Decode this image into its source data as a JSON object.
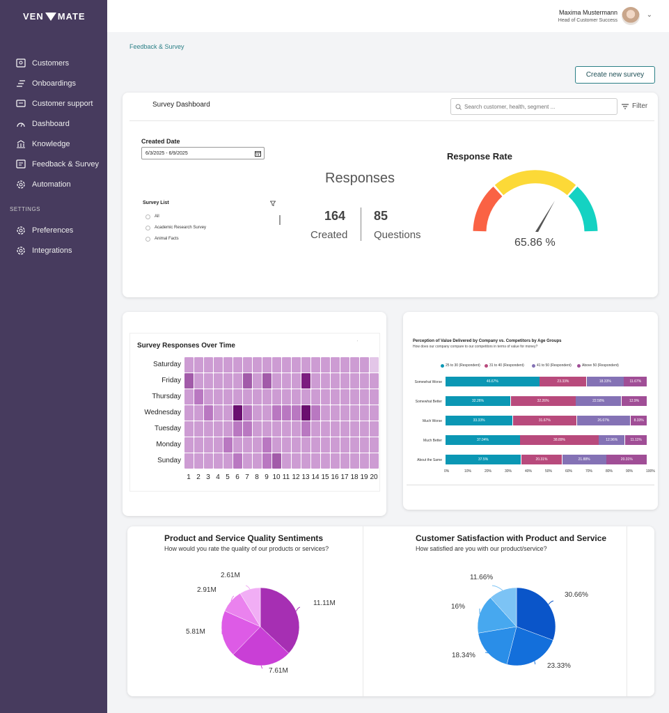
{
  "brand": {
    "left": "VEN",
    "right": "MATE"
  },
  "sidebar": {
    "items": [
      {
        "label": "Customers",
        "icon": "customers-icon"
      },
      {
        "label": "Onboardings",
        "icon": "onboardings-icon"
      },
      {
        "label": "Customer support",
        "icon": "support-icon"
      },
      {
        "label": "Dashboard",
        "icon": "dashboard-icon"
      },
      {
        "label": "Knowledge",
        "icon": "knowledge-icon"
      },
      {
        "label": "Feedback & Survey",
        "icon": "feedback-icon"
      },
      {
        "label": "Automation",
        "icon": "automation-icon"
      }
    ],
    "settings_label": "SETTINGS",
    "settings_items": [
      {
        "label": "Preferences",
        "icon": "gear-icon"
      },
      {
        "label": "Integrations",
        "icon": "gear-icon"
      }
    ]
  },
  "user": {
    "name": "Maxima Mustermann",
    "role": "Head of Customer Success"
  },
  "breadcrumb": "Feedback & Survey",
  "create_button": "Create new survey",
  "dashboard": {
    "title": "Survey Dashboard",
    "search_placeholder": "Search customer, health, segment ...",
    "filter_label": "Filter",
    "created_date_label": "Created Date",
    "date_range": "6/3/2025 - 6/9/2025",
    "survey_list_label": "Survey List",
    "survey_list": [
      "All",
      "Academic Research Survey",
      "Animal Facts"
    ],
    "responses_title": "Responses",
    "created_value": "164",
    "created_label": "Created",
    "questions_value": "85",
    "questions_label": "Questions",
    "response_rate_title": "Response Rate",
    "response_rate_value": "65.86 %",
    "response_rate_pct": 65.86
  },
  "heatmap": {
    "title": "Survey Responses Over Time",
    "days": [
      "Saturday",
      "Friday",
      "Thursday",
      "Wednesday",
      "Tuesday",
      "Monday",
      "Sunday"
    ],
    "columns": [
      "1",
      "2",
      "3",
      "4",
      "5",
      "6",
      "7",
      "8",
      "9",
      "10",
      "11",
      "12",
      "13",
      "14",
      "15",
      "16",
      "17",
      "18",
      "19",
      "20"
    ],
    "levels": [
      [
        1,
        1,
        1,
        1,
        1,
        1,
        1,
        1,
        1,
        1,
        1,
        1,
        1,
        1,
        1,
        1,
        1,
        1,
        1,
        0
      ],
      [
        3,
        1,
        1,
        1,
        1,
        1,
        3,
        1,
        3,
        1,
        1,
        1,
        4,
        1,
        1,
        1,
        1,
        1,
        1,
        1
      ],
      [
        1,
        2,
        1,
        1,
        1,
        1,
        1,
        1,
        1,
        1,
        1,
        1,
        1,
        1,
        1,
        1,
        1,
        1,
        1,
        1
      ],
      [
        1,
        1,
        2,
        1,
        1,
        5,
        2,
        1,
        1,
        2,
        2,
        2,
        5,
        2,
        1,
        1,
        1,
        1,
        1,
        1
      ],
      [
        1,
        1,
        1,
        1,
        1,
        2,
        2,
        1,
        1,
        1,
        1,
        1,
        2,
        1,
        1,
        1,
        1,
        1,
        1,
        1
      ],
      [
        1,
        1,
        1,
        1,
        2,
        1,
        1,
        1,
        2,
        1,
        1,
        1,
        1,
        1,
        1,
        1,
        1,
        1,
        1,
        1
      ],
      [
        1,
        1,
        1,
        1,
        1,
        2,
        1,
        1,
        2,
        3,
        1,
        1,
        1,
        1,
        1,
        1,
        1,
        1,
        1,
        1
      ]
    ]
  },
  "perception": {
    "title": "Perception of Value Delivered by Company vs. Competitors by Age Groups",
    "subtitle": "How does our company compare to our competitors in terms of value for money?",
    "legend": [
      {
        "label": "25 to 30 (Respondent)",
        "color": "#0b97b4"
      },
      {
        "label": "31 to 40 (Respondent)",
        "color": "#b84a7c"
      },
      {
        "label": "41 to 50 (Respondent)",
        "color": "#8472b5"
      },
      {
        "label": "Above 50 (Respondent)",
        "color": "#a04e96"
      }
    ],
    "rows": [
      {
        "label": "Somewhat Worse",
        "values": [
          46.67,
          23.33,
          18.33,
          11.67
        ],
        "text": [
          "46.67%",
          "23.33%",
          "18.33%",
          "11.67%"
        ]
      },
      {
        "label": "Somewhat Better",
        "values": [
          32.26,
          32.26,
          22.58,
          12.9
        ],
        "text": [
          "32.26%",
          "32.26%",
          "22.58%",
          "12.9%"
        ]
      },
      {
        "label": "Much Worse",
        "values": [
          33.33,
          31.67,
          26.67,
          8.33
        ],
        "text": [
          "33.33%",
          "31.67%",
          "26.67%",
          "8.33%"
        ]
      },
      {
        "label": "Much Better",
        "values": [
          37.04,
          38.89,
          12.96,
          11.11
        ],
        "text": [
          "37.04%",
          "38.89%",
          "12.96%",
          "11.11%"
        ]
      },
      {
        "label": "About the Same",
        "values": [
          37.5,
          20.31,
          21.88,
          20.31
        ],
        "text": [
          "37.5%",
          "20.31%",
          "21.88%",
          "20.31%"
        ]
      }
    ],
    "x_ticks": [
      "0%",
      "10%",
      "20%",
      "30%",
      "40%",
      "50%",
      "60%",
      "70%",
      "80%",
      "90%",
      "100%"
    ]
  },
  "chart_data": [
    {
      "type": "pie",
      "title": "Product and Service Quality Sentiments",
      "subtitle": "How would you rate the quality of our products or services?",
      "labels": [
        "11.11M",
        "7.61M",
        "5.81M",
        "2.91M",
        "2.61M"
      ],
      "values": [
        11.11,
        7.61,
        5.81,
        2.91,
        2.61
      ],
      "colors": [
        "#a62fb3",
        "#c93fd6",
        "#dd5be6",
        "#ea82ee",
        "#f1aef5"
      ]
    },
    {
      "type": "pie",
      "title": "Customer Satisfaction with Product and Service",
      "subtitle": "How satisfied are you with our product/service?",
      "labels": [
        "30.66%",
        "23.33%",
        "18.34%",
        "16%",
        "11.66%"
      ],
      "values": [
        30.66,
        23.33,
        18.34,
        16,
        11.66
      ],
      "colors": [
        "#0a55c9",
        "#136fdb",
        "#2a8ee8",
        "#47a8ef",
        "#7cc3f5"
      ]
    }
  ]
}
